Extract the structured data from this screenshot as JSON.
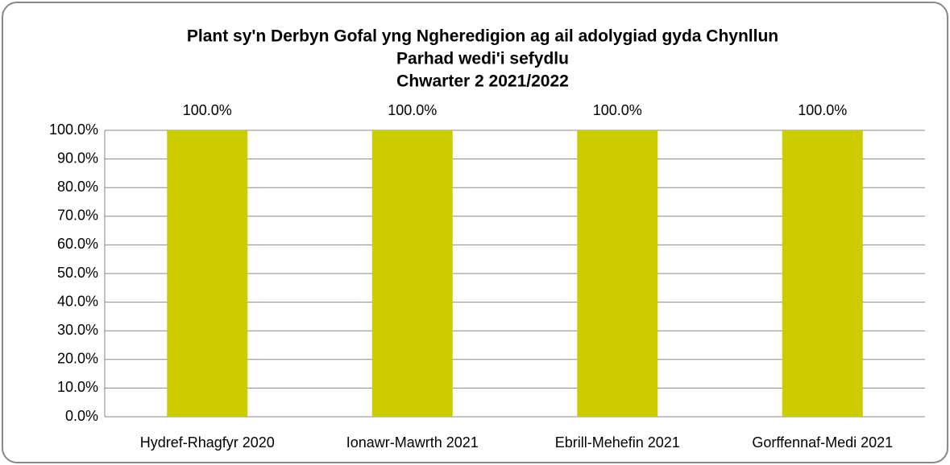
{
  "chart_data": {
    "type": "bar",
    "title": [
      "Plant sy'n Derbyn Gofal yng Ngheredigion ag ail adolygiad gyda Chynllun",
      "Parhad wedi'i sefydlu",
      "Chwarter 2  2021/2022"
    ],
    "categories": [
      "Hydref-Rhagfyr 2020",
      "Ionawr-Mawrth 2021",
      "Ebrill-Mehefin 2021",
      "Gorffennaf-Medi 2021"
    ],
    "values": [
      100,
      100,
      100,
      100
    ],
    "value_labels": [
      "100.0%",
      "100.0%",
      "100.0%",
      "100.0%"
    ],
    "color": "#cccc00",
    "ylim": [
      0,
      100
    ],
    "yticks": [
      {
        "value": 0,
        "label": "0.0%"
      },
      {
        "value": 10,
        "label": "10.0%"
      },
      {
        "value": 20,
        "label": "20.0%"
      },
      {
        "value": 30,
        "label": "30.0%"
      },
      {
        "value": 40,
        "label": "40.0%"
      },
      {
        "value": 50,
        "label": "50.0%"
      },
      {
        "value": 60,
        "label": "60.0%"
      },
      {
        "value": 70,
        "label": "70.0%"
      },
      {
        "value": 80,
        "label": "80.0%"
      },
      {
        "value": 90,
        "label": "90.0%"
      },
      {
        "value": 100,
        "label": "100.0%"
      }
    ],
    "grid": true
  }
}
